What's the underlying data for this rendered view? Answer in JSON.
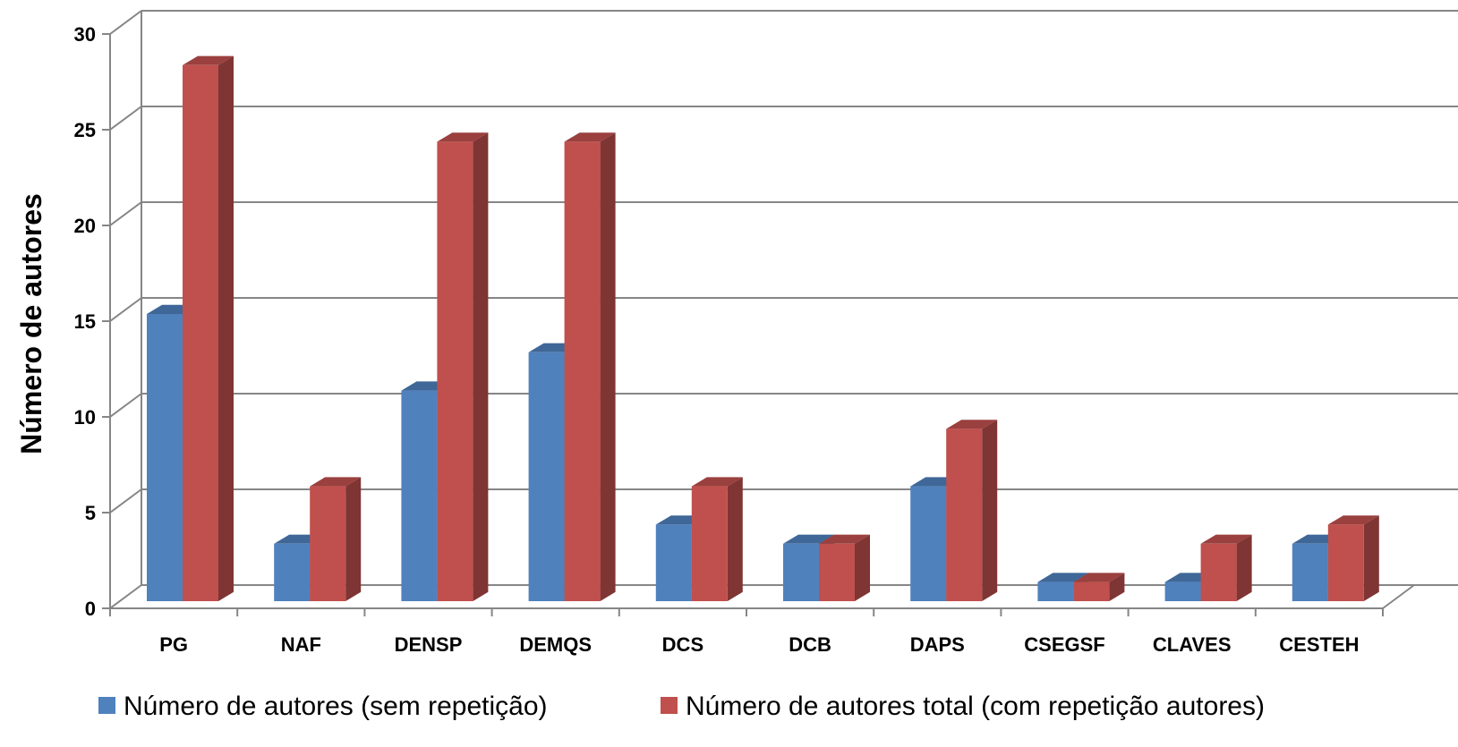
{
  "chart_data": {
    "type": "bar",
    "title": "",
    "xlabel": "",
    "ylabel": "Número de  autores",
    "ylim": [
      0,
      30
    ],
    "yticks": [
      0,
      5,
      10,
      15,
      20,
      25,
      30
    ],
    "grid": true,
    "legend_position": "bottom",
    "style": "3d-clustered-column",
    "categories": [
      "PG",
      "NAF",
      "DENSP",
      "DEMQS",
      "DCS",
      "DCB",
      "DAPS",
      "CSEGSF",
      "CLAVES",
      "CESTEH"
    ],
    "series": [
      {
        "name": "Número de autores (sem repetição)",
        "color": "#4f81bd",
        "values": [
          15,
          3,
          11,
          13,
          4,
          3,
          6,
          1,
          1,
          3
        ]
      },
      {
        "name": "Número de autores total (com repetição autores)",
        "color": "#c0504d",
        "values": [
          28,
          6,
          24,
          24,
          6,
          3,
          9,
          1,
          3,
          4
        ]
      }
    ]
  }
}
